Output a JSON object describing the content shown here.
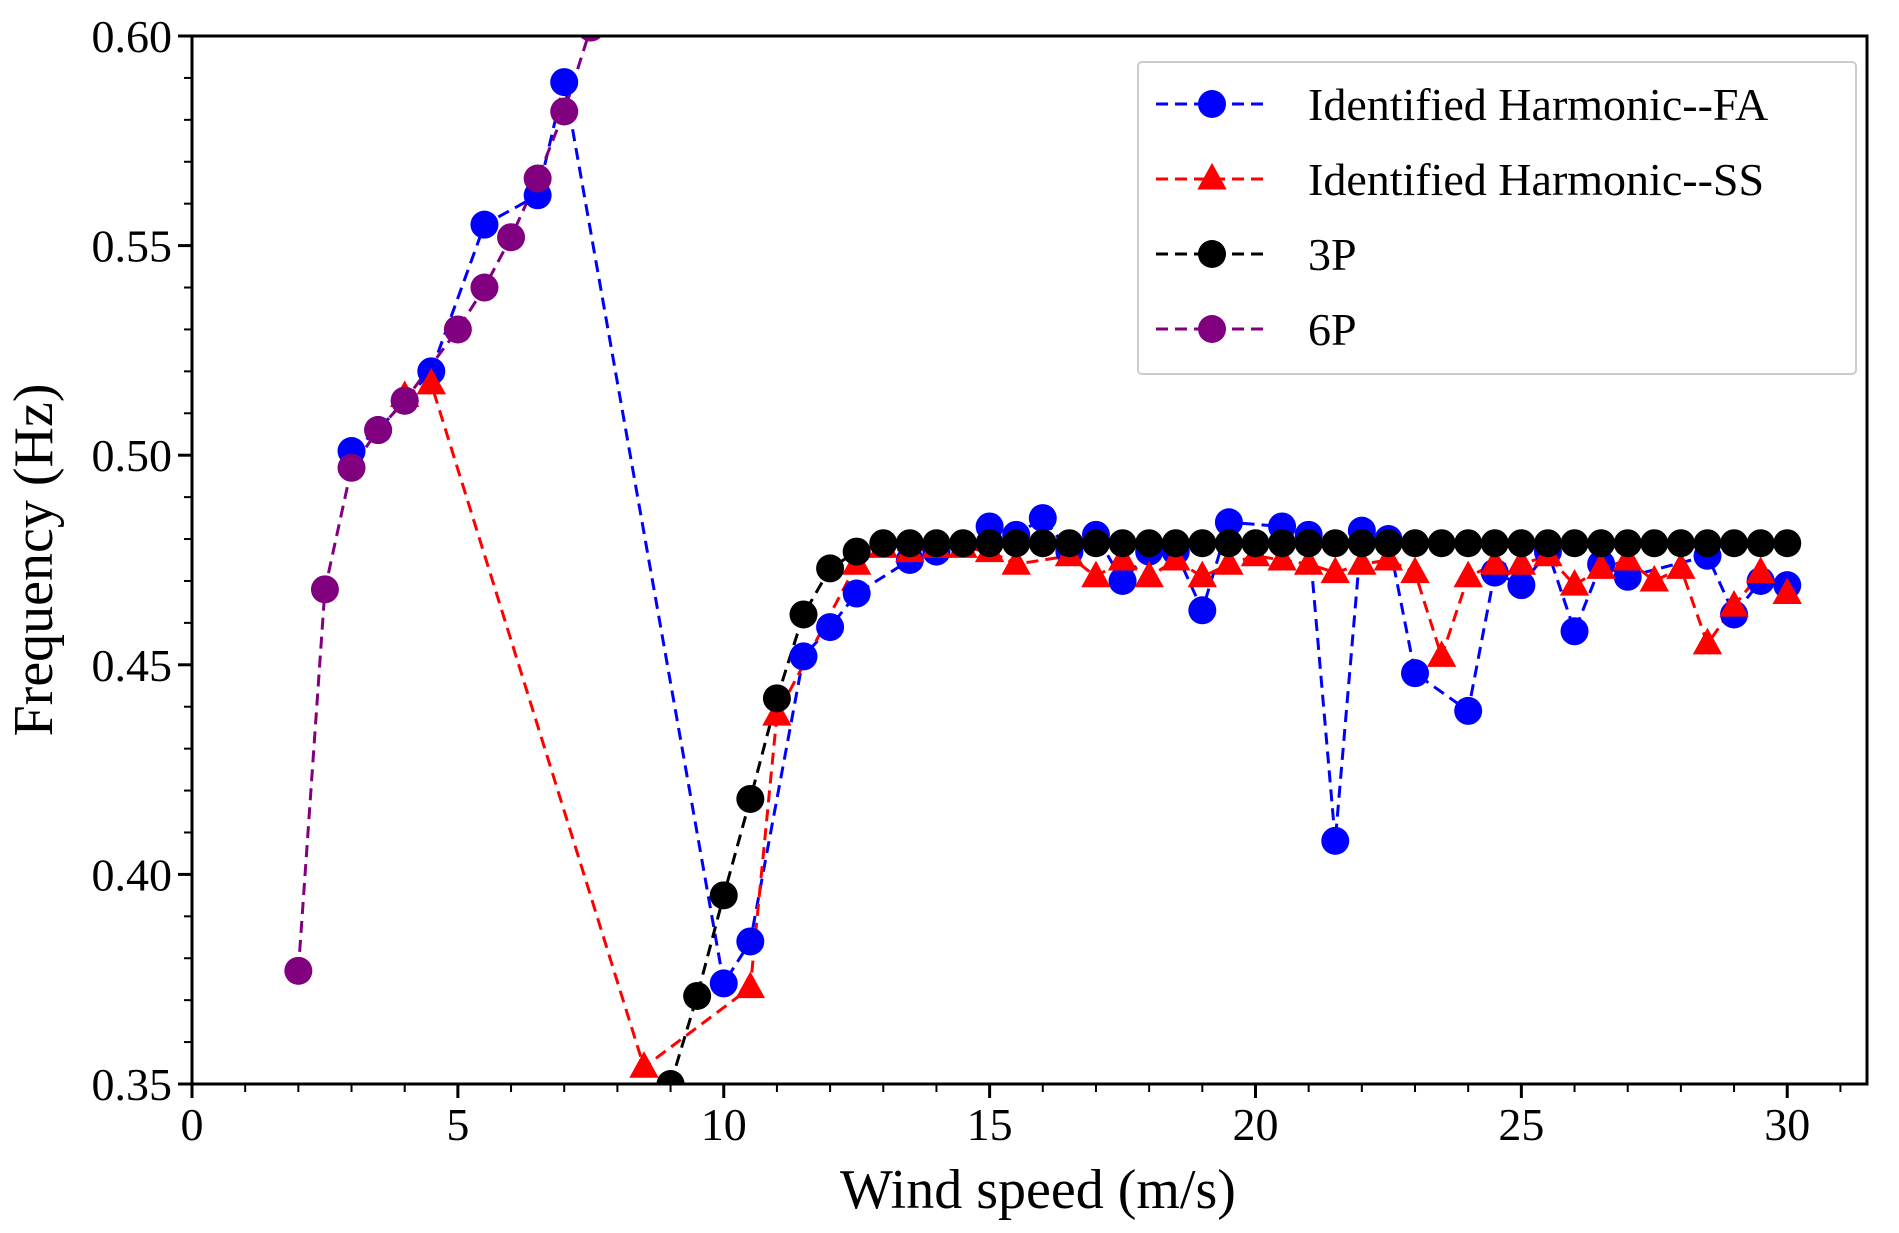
{
  "chart_data": {
    "type": "line",
    "title": "",
    "xlabel": "Wind speed (m/s)",
    "ylabel": "Frequency (Hz)",
    "xlim": [
      0,
      31.5
    ],
    "ylim": [
      0.35,
      0.6
    ],
    "x_ticks": [
      0,
      5,
      10,
      15,
      20,
      25,
      30
    ],
    "x_tick_labels": [
      "0",
      "5",
      "10",
      "15",
      "20",
      "25",
      "30"
    ],
    "y_ticks": [
      0.35,
      0.4,
      0.45,
      0.5,
      0.55,
      0.6
    ],
    "y_tick_labels": [
      "0.35",
      "0.40",
      "0.45",
      "0.50",
      "0.55",
      "0.60"
    ],
    "grid": false,
    "legend_position": "top-right",
    "series": [
      {
        "name": "Identified Harmonic--FA",
        "color": "#0000ff",
        "marker": "circle",
        "line_style": "dashed",
        "points": [
          [
            3.0,
            0.501
          ],
          [
            3.5,
            0.506
          ],
          [
            4.0,
            0.513
          ],
          [
            4.5,
            0.52
          ],
          [
            5.5,
            0.555
          ],
          [
            6.5,
            0.562
          ],
          [
            7.0,
            0.589
          ],
          [
            10.0,
            0.374
          ],
          [
            10.5,
            0.384
          ],
          [
            11.5,
            0.452
          ],
          [
            12.0,
            0.459
          ],
          [
            12.5,
            0.467
          ],
          [
            13.5,
            0.475
          ],
          [
            14.0,
            0.477
          ],
          [
            15.0,
            0.483
          ],
          [
            15.5,
            0.481
          ],
          [
            16.0,
            0.485
          ],
          [
            16.5,
            0.477
          ],
          [
            17.0,
            0.481
          ],
          [
            17.5,
            0.47
          ],
          [
            18.0,
            0.477
          ],
          [
            18.5,
            0.477
          ],
          [
            19.0,
            0.463
          ],
          [
            19.5,
            0.484
          ],
          [
            20.5,
            0.483
          ],
          [
            21.0,
            0.481
          ],
          [
            21.5,
            0.408
          ],
          [
            22.0,
            0.482
          ],
          [
            22.5,
            0.48
          ],
          [
            23.0,
            0.448
          ],
          [
            24.0,
            0.439
          ],
          [
            24.5,
            0.472
          ],
          [
            25.0,
            0.469
          ],
          [
            25.5,
            0.477
          ],
          [
            26.0,
            0.458
          ],
          [
            26.5,
            0.474
          ],
          [
            27.0,
            0.471
          ],
          [
            28.5,
            0.476
          ],
          [
            29.0,
            0.462
          ],
          [
            29.5,
            0.47
          ],
          [
            30.0,
            0.469
          ]
        ]
      },
      {
        "name": "Identified Harmonic--SS",
        "color": "#ff0000",
        "marker": "triangle",
        "line_style": "dashed",
        "points": [
          [
            4.0,
            0.514
          ],
          [
            4.5,
            0.517
          ],
          [
            8.5,
            0.354
          ],
          [
            10.5,
            0.373
          ],
          [
            11.0,
            0.438
          ],
          [
            12.5,
            0.474
          ],
          [
            13.0,
            0.478
          ],
          [
            13.5,
            0.477
          ],
          [
            14.0,
            0.478
          ],
          [
            14.5,
            0.478
          ],
          [
            15.0,
            0.477
          ],
          [
            15.5,
            0.474
          ],
          [
            16.5,
            0.476
          ],
          [
            17.0,
            0.471
          ],
          [
            17.5,
            0.475
          ],
          [
            18.0,
            0.471
          ],
          [
            18.5,
            0.475
          ],
          [
            19.0,
            0.471
          ],
          [
            19.5,
            0.474
          ],
          [
            20.0,
            0.476
          ],
          [
            20.5,
            0.475
          ],
          [
            21.0,
            0.474
          ],
          [
            21.5,
            0.472
          ],
          [
            22.0,
            0.474
          ],
          [
            22.5,
            0.475
          ],
          [
            23.0,
            0.472
          ],
          [
            23.5,
            0.452
          ],
          [
            24.0,
            0.471
          ],
          [
            24.5,
            0.474
          ],
          [
            25.0,
            0.474
          ],
          [
            25.5,
            0.476
          ],
          [
            26.0,
            0.469
          ],
          [
            26.5,
            0.473
          ],
          [
            27.0,
            0.475
          ],
          [
            27.5,
            0.47
          ],
          [
            28.0,
            0.473
          ],
          [
            28.5,
            0.455
          ],
          [
            29.0,
            0.464
          ],
          [
            29.5,
            0.472
          ],
          [
            30.0,
            0.467
          ]
        ]
      },
      {
        "name": "3P",
        "color": "#000000",
        "marker": "circle",
        "line_style": "dashed",
        "points": [
          [
            9.0,
            0.35
          ],
          [
            9.5,
            0.371
          ],
          [
            10.0,
            0.395
          ],
          [
            10.5,
            0.418
          ],
          [
            11.0,
            0.442
          ],
          [
            11.5,
            0.462
          ],
          [
            12.0,
            0.473
          ],
          [
            12.5,
            0.477
          ],
          [
            13.0,
            0.479
          ],
          [
            13.5,
            0.479
          ],
          [
            14.0,
            0.479
          ],
          [
            14.5,
            0.479
          ],
          [
            15.0,
            0.479
          ],
          [
            15.5,
            0.479
          ],
          [
            16.0,
            0.479
          ],
          [
            16.5,
            0.479
          ],
          [
            17.0,
            0.479
          ],
          [
            17.5,
            0.479
          ],
          [
            18.0,
            0.479
          ],
          [
            18.5,
            0.479
          ],
          [
            19.0,
            0.479
          ],
          [
            19.5,
            0.479
          ],
          [
            20.0,
            0.479
          ],
          [
            20.5,
            0.479
          ],
          [
            21.0,
            0.479
          ],
          [
            21.5,
            0.479
          ],
          [
            22.0,
            0.479
          ],
          [
            22.5,
            0.479
          ],
          [
            23.0,
            0.479
          ],
          [
            23.5,
            0.479
          ],
          [
            24.0,
            0.479
          ],
          [
            24.5,
            0.479
          ],
          [
            25.0,
            0.479
          ],
          [
            25.5,
            0.479
          ],
          [
            26.0,
            0.479
          ],
          [
            26.5,
            0.479
          ],
          [
            27.0,
            0.479
          ],
          [
            27.5,
            0.479
          ],
          [
            28.0,
            0.479
          ],
          [
            28.5,
            0.479
          ],
          [
            29.0,
            0.479
          ],
          [
            29.5,
            0.479
          ],
          [
            30.0,
            0.479
          ]
        ]
      },
      {
        "name": "6P",
        "color": "#800080",
        "marker": "circle",
        "line_style": "dashed",
        "points": [
          [
            2.0,
            0.377
          ],
          [
            2.5,
            0.468
          ],
          [
            3.0,
            0.497
          ],
          [
            3.5,
            0.506
          ],
          [
            4.0,
            0.513
          ],
          [
            5.0,
            0.53
          ],
          [
            5.5,
            0.54
          ],
          [
            6.0,
            0.552
          ],
          [
            6.5,
            0.566
          ],
          [
            7.0,
            0.582
          ],
          [
            7.5,
            0.602
          ]
        ]
      }
    ]
  }
}
